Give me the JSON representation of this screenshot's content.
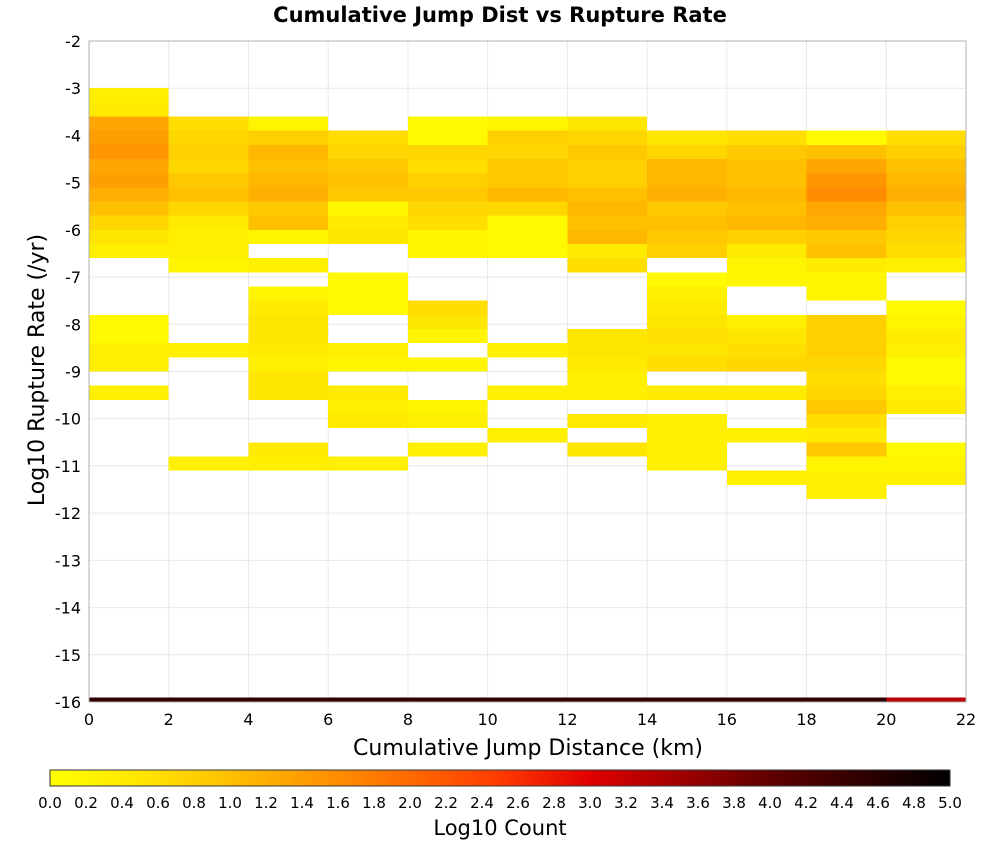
{
  "chart_data": {
    "type": "heatmap",
    "title": "Cumulative Jump Dist vs Rupture Rate",
    "xlabel": "Cumulative Jump Distance (km)",
    "ylabel": "Log10 Rupture Rate (/yr)",
    "xlim": [
      0,
      22
    ],
    "ylim": [
      -16,
      -2
    ],
    "x_ticks": [
      "0",
      "2",
      "4",
      "6",
      "8",
      "10",
      "12",
      "14",
      "16",
      "18",
      "20",
      "22"
    ],
    "y_ticks": [
      "-2",
      "-3",
      "-4",
      "-5",
      "-6",
      "-7",
      "-8",
      "-9",
      "-10",
      "-11",
      "-12",
      "-13",
      "-14",
      "-15",
      "-16"
    ],
    "x_bin_width": 2,
    "y_bin_height": 0.3,
    "grid": true,
    "colorbar": {
      "label": "Log10 Count",
      "min": 0.0,
      "max": 5.0,
      "ticks": [
        "0.0",
        "0.2",
        "0.4",
        "0.6",
        "0.8",
        "1.0",
        "1.2",
        "1.4",
        "1.6",
        "1.8",
        "2.0",
        "2.2",
        "2.4",
        "2.6",
        "2.8",
        "3.0",
        "3.2",
        "3.4",
        "3.6",
        "3.8",
        "4.0",
        "4.2",
        "4.4",
        "4.6",
        "4.8",
        "5.0"
      ],
      "colors": [
        "#ffff00",
        "#ffe600",
        "#ffc000",
        "#ff9500",
        "#ff6a00",
        "#ff3a00",
        "#e00000",
        "#a00000",
        "#600000",
        "#300000",
        "#000000"
      ]
    },
    "cells": [
      {
        "x": 0,
        "y": -3.3,
        "v": 0.3
      },
      {
        "x": 0,
        "y": -3.6,
        "v": 0.4
      },
      {
        "x": 0,
        "y": -3.9,
        "v": 1.3
      },
      {
        "x": 0,
        "y": -4.2,
        "v": 1.4
      },
      {
        "x": 0,
        "y": -4.5,
        "v": 1.5
      },
      {
        "x": 0,
        "y": -4.8,
        "v": 1.3
      },
      {
        "x": 0,
        "y": -5.1,
        "v": 1.4
      },
      {
        "x": 0,
        "y": -5.4,
        "v": 1.2
      },
      {
        "x": 0,
        "y": -5.7,
        "v": 1.0
      },
      {
        "x": 0,
        "y": -6.0,
        "v": 0.7
      },
      {
        "x": 0,
        "y": -6.3,
        "v": 0.5
      },
      {
        "x": 0,
        "y": -6.6,
        "v": 0.3
      },
      {
        "x": 0,
        "y": -8.1,
        "v": 0.1
      },
      {
        "x": 0,
        "y": -8.4,
        "v": 0.1
      },
      {
        "x": 0,
        "y": -8.7,
        "v": 0.3
      },
      {
        "x": 0,
        "y": -9.0,
        "v": 0.3
      },
      {
        "x": 0,
        "y": -9.6,
        "v": 0.3
      },
      {
        "x": 0,
        "y": -16.2,
        "v": 4.5
      },
      {
        "x": 2,
        "y": -3.9,
        "v": 0.6
      },
      {
        "x": 2,
        "y": -4.2,
        "v": 0.7
      },
      {
        "x": 2,
        "y": -4.5,
        "v": 0.8
      },
      {
        "x": 2,
        "y": -4.8,
        "v": 0.7
      },
      {
        "x": 2,
        "y": -5.1,
        "v": 0.9
      },
      {
        "x": 2,
        "y": -5.4,
        "v": 1.0
      },
      {
        "x": 2,
        "y": -5.7,
        "v": 0.7
      },
      {
        "x": 2,
        "y": -6.0,
        "v": 0.4
      },
      {
        "x": 2,
        "y": -6.3,
        "v": 0.3
      },
      {
        "x": 2,
        "y": -6.6,
        "v": 0.3
      },
      {
        "x": 2,
        "y": -6.9,
        "v": 0.2
      },
      {
        "x": 2,
        "y": -8.7,
        "v": 0.3
      },
      {
        "x": 2,
        "y": -11.1,
        "v": 0.3
      },
      {
        "x": 2,
        "y": -16.2,
        "v": 4.5
      },
      {
        "x": 4,
        "y": -3.9,
        "v": 0.2
      },
      {
        "x": 4,
        "y": -4.2,
        "v": 0.8
      },
      {
        "x": 4,
        "y": -4.5,
        "v": 1.1
      },
      {
        "x": 4,
        "y": -4.8,
        "v": 1.0
      },
      {
        "x": 4,
        "y": -5.1,
        "v": 1.1
      },
      {
        "x": 4,
        "y": -5.4,
        "v": 1.2
      },
      {
        "x": 4,
        "y": -5.7,
        "v": 0.9
      },
      {
        "x": 4,
        "y": -6.0,
        "v": 1.0
      },
      {
        "x": 4,
        "y": -6.3,
        "v": 0.2
      },
      {
        "x": 4,
        "y": -6.9,
        "v": 0.3
      },
      {
        "x": 4,
        "y": -7.5,
        "v": 0.2
      },
      {
        "x": 4,
        "y": -7.8,
        "v": 0.4
      },
      {
        "x": 4,
        "y": -8.1,
        "v": 0.5
      },
      {
        "x": 4,
        "y": -8.4,
        "v": 0.5
      },
      {
        "x": 4,
        "y": -8.7,
        "v": 0.4
      },
      {
        "x": 4,
        "y": -9.0,
        "v": 0.3
      },
      {
        "x": 4,
        "y": -9.3,
        "v": 0.5
      },
      {
        "x": 4,
        "y": -9.6,
        "v": 0.5
      },
      {
        "x": 4,
        "y": -10.8,
        "v": 0.4
      },
      {
        "x": 4,
        "y": -11.1,
        "v": 0.3
      },
      {
        "x": 4,
        "y": -16.2,
        "v": 4.5
      },
      {
        "x": 6,
        "y": -4.2,
        "v": 0.6
      },
      {
        "x": 6,
        "y": -4.5,
        "v": 0.7
      },
      {
        "x": 6,
        "y": -4.8,
        "v": 0.9
      },
      {
        "x": 6,
        "y": -5.1,
        "v": 1.0
      },
      {
        "x": 6,
        "y": -5.4,
        "v": 0.9
      },
      {
        "x": 6,
        "y": -5.7,
        "v": 0.2
      },
      {
        "x": 6,
        "y": -6.0,
        "v": 0.4
      },
      {
        "x": 6,
        "y": -6.3,
        "v": 0.5
      },
      {
        "x": 6,
        "y": -7.2,
        "v": 0.1
      },
      {
        "x": 6,
        "y": -7.5,
        "v": 0.1
      },
      {
        "x": 6,
        "y": -7.8,
        "v": 0.1
      },
      {
        "x": 6,
        "y": -8.7,
        "v": 0.3
      },
      {
        "x": 6,
        "y": -9.0,
        "v": 0.2
      },
      {
        "x": 6,
        "y": -9.6,
        "v": 0.4
      },
      {
        "x": 6,
        "y": -9.9,
        "v": 0.3
      },
      {
        "x": 6,
        "y": -10.2,
        "v": 0.4
      },
      {
        "x": 6,
        "y": -11.1,
        "v": 0.3
      },
      {
        "x": 6,
        "y": -16.2,
        "v": 4.5
      },
      {
        "x": 8,
        "y": -3.9,
        "v": 0.1
      },
      {
        "x": 8,
        "y": -4.2,
        "v": 0.1
      },
      {
        "x": 8,
        "y": -4.5,
        "v": 0.7
      },
      {
        "x": 8,
        "y": -4.8,
        "v": 0.6
      },
      {
        "x": 8,
        "y": -5.1,
        "v": 0.8
      },
      {
        "x": 8,
        "y": -5.4,
        "v": 0.9
      },
      {
        "x": 8,
        "y": -5.7,
        "v": 0.7
      },
      {
        "x": 8,
        "y": -6.0,
        "v": 0.6
      },
      {
        "x": 8,
        "y": -6.3,
        "v": 0.2
      },
      {
        "x": 8,
        "y": -6.6,
        "v": 0.2
      },
      {
        "x": 8,
        "y": -7.8,
        "v": 0.6
      },
      {
        "x": 8,
        "y": -8.1,
        "v": 0.5
      },
      {
        "x": 8,
        "y": -8.4,
        "v": 0.2
      },
      {
        "x": 8,
        "y": -9.0,
        "v": 0.2
      },
      {
        "x": 8,
        "y": -9.9,
        "v": 0.2
      },
      {
        "x": 8,
        "y": -10.2,
        "v": 0.3
      },
      {
        "x": 8,
        "y": -10.8,
        "v": 0.3
      },
      {
        "x": 8,
        "y": -16.2,
        "v": 4.5
      },
      {
        "x": 10,
        "y": -3.9,
        "v": 0.2
      },
      {
        "x": 10,
        "y": -4.2,
        "v": 0.8
      },
      {
        "x": 10,
        "y": -4.5,
        "v": 0.7
      },
      {
        "x": 10,
        "y": -4.8,
        "v": 0.9
      },
      {
        "x": 10,
        "y": -5.1,
        "v": 0.9
      },
      {
        "x": 10,
        "y": -5.4,
        "v": 1.1
      },
      {
        "x": 10,
        "y": -5.7,
        "v": 0.7
      },
      {
        "x": 10,
        "y": -6.0,
        "v": 0.1
      },
      {
        "x": 10,
        "y": -6.3,
        "v": 0.1
      },
      {
        "x": 10,
        "y": -6.6,
        "v": 0.1
      },
      {
        "x": 10,
        "y": -8.7,
        "v": 0.3
      },
      {
        "x": 10,
        "y": -9.6,
        "v": 0.3
      },
      {
        "x": 10,
        "y": -10.5,
        "v": 0.3
      },
      {
        "x": 10,
        "y": -16.2,
        "v": 4.5
      },
      {
        "x": 12,
        "y": -3.9,
        "v": 0.5
      },
      {
        "x": 12,
        "y": -4.2,
        "v": 0.7
      },
      {
        "x": 12,
        "y": -4.5,
        "v": 0.9
      },
      {
        "x": 12,
        "y": -4.8,
        "v": 0.8
      },
      {
        "x": 12,
        "y": -5.1,
        "v": 0.8
      },
      {
        "x": 12,
        "y": -5.4,
        "v": 1.0
      },
      {
        "x": 12,
        "y": -5.7,
        "v": 1.1
      },
      {
        "x": 12,
        "y": -6.0,
        "v": 1.0
      },
      {
        "x": 12,
        "y": -6.3,
        "v": 1.1
      },
      {
        "x": 12,
        "y": -6.6,
        "v": 0.4
      },
      {
        "x": 12,
        "y": -6.9,
        "v": 0.6
      },
      {
        "x": 12,
        "y": -8.4,
        "v": 0.5
      },
      {
        "x": 12,
        "y": -8.7,
        "v": 0.5
      },
      {
        "x": 12,
        "y": -9.0,
        "v": 0.4
      },
      {
        "x": 12,
        "y": -9.3,
        "v": 0.3
      },
      {
        "x": 12,
        "y": -9.6,
        "v": 0.3
      },
      {
        "x": 12,
        "y": -10.2,
        "v": 0.4
      },
      {
        "x": 12,
        "y": -10.8,
        "v": 0.5
      },
      {
        "x": 12,
        "y": -16.2,
        "v": 4.5
      },
      {
        "x": 14,
        "y": -4.2,
        "v": 0.5
      },
      {
        "x": 14,
        "y": -4.5,
        "v": 0.7
      },
      {
        "x": 14,
        "y": -4.8,
        "v": 1.1
      },
      {
        "x": 14,
        "y": -5.1,
        "v": 1.1
      },
      {
        "x": 14,
        "y": -5.4,
        "v": 1.2
      },
      {
        "x": 14,
        "y": -5.7,
        "v": 0.9
      },
      {
        "x": 14,
        "y": -6.0,
        "v": 1.0
      },
      {
        "x": 14,
        "y": -6.3,
        "v": 0.9
      },
      {
        "x": 14,
        "y": -6.6,
        "v": 0.8
      },
      {
        "x": 14,
        "y": -7.2,
        "v": 0.1
      },
      {
        "x": 14,
        "y": -7.5,
        "v": 0.3
      },
      {
        "x": 14,
        "y": -7.8,
        "v": 0.4
      },
      {
        "x": 14,
        "y": -8.1,
        "v": 0.5
      },
      {
        "x": 14,
        "y": -8.4,
        "v": 0.6
      },
      {
        "x": 14,
        "y": -8.7,
        "v": 0.5
      },
      {
        "x": 14,
        "y": -9.0,
        "v": 0.6
      },
      {
        "x": 14,
        "y": -9.6,
        "v": 0.4
      },
      {
        "x": 14,
        "y": -10.2,
        "v": 0.3
      },
      {
        "x": 14,
        "y": -10.5,
        "v": 0.3
      },
      {
        "x": 14,
        "y": -10.8,
        "v": 0.3
      },
      {
        "x": 14,
        "y": -11.1,
        "v": 0.3
      },
      {
        "x": 14,
        "y": -16.2,
        "v": 4.5
      },
      {
        "x": 16,
        "y": -4.2,
        "v": 0.6
      },
      {
        "x": 16,
        "y": -4.5,
        "v": 0.9
      },
      {
        "x": 16,
        "y": -4.8,
        "v": 1.0
      },
      {
        "x": 16,
        "y": -5.1,
        "v": 1.0
      },
      {
        "x": 16,
        "y": -5.4,
        "v": 1.1
      },
      {
        "x": 16,
        "y": -5.7,
        "v": 1.0
      },
      {
        "x": 16,
        "y": -6.0,
        "v": 1.1
      },
      {
        "x": 16,
        "y": -6.3,
        "v": 0.8
      },
      {
        "x": 16,
        "y": -6.6,
        "v": 0.4
      },
      {
        "x": 16,
        "y": -6.9,
        "v": 0.2
      },
      {
        "x": 16,
        "y": -7.2,
        "v": 0.2
      },
      {
        "x": 16,
        "y": -8.1,
        "v": 0.3
      },
      {
        "x": 16,
        "y": -8.4,
        "v": 0.5
      },
      {
        "x": 16,
        "y": -8.7,
        "v": 0.6
      },
      {
        "x": 16,
        "y": -9.0,
        "v": 0.7
      },
      {
        "x": 16,
        "y": -9.6,
        "v": 0.4
      },
      {
        "x": 16,
        "y": -10.5,
        "v": 0.3
      },
      {
        "x": 16,
        "y": -11.4,
        "v": 0.3
      },
      {
        "x": 16,
        "y": -16.2,
        "v": 4.5
      },
      {
        "x": 18,
        "y": -4.2,
        "v": 0.1
      },
      {
        "x": 18,
        "y": -4.5,
        "v": 1.0
      },
      {
        "x": 18,
        "y": -4.8,
        "v": 1.3
      },
      {
        "x": 18,
        "y": -5.1,
        "v": 1.5
      },
      {
        "x": 18,
        "y": -5.4,
        "v": 1.6
      },
      {
        "x": 18,
        "y": -5.7,
        "v": 1.3
      },
      {
        "x": 18,
        "y": -6.0,
        "v": 1.2
      },
      {
        "x": 18,
        "y": -6.3,
        "v": 0.9
      },
      {
        "x": 18,
        "y": -6.6,
        "v": 1.0
      },
      {
        "x": 18,
        "y": -6.9,
        "v": 0.4
      },
      {
        "x": 18,
        "y": -7.2,
        "v": 0.2
      },
      {
        "x": 18,
        "y": -7.5,
        "v": 0.2
      },
      {
        "x": 18,
        "y": -8.1,
        "v": 0.8
      },
      {
        "x": 18,
        "y": -8.4,
        "v": 0.8
      },
      {
        "x": 18,
        "y": -8.7,
        "v": 0.8
      },
      {
        "x": 18,
        "y": -9.0,
        "v": 0.7
      },
      {
        "x": 18,
        "y": -9.3,
        "v": 0.6
      },
      {
        "x": 18,
        "y": -9.6,
        "v": 0.7
      },
      {
        "x": 18,
        "y": -9.9,
        "v": 0.9
      },
      {
        "x": 18,
        "y": -10.2,
        "v": 0.6
      },
      {
        "x": 18,
        "y": -10.5,
        "v": 0.4
      },
      {
        "x": 18,
        "y": -10.8,
        "v": 0.9
      },
      {
        "x": 18,
        "y": -11.1,
        "v": 0.2
      },
      {
        "x": 18,
        "y": -11.4,
        "v": 0.3
      },
      {
        "x": 18,
        "y": -11.7,
        "v": 0.3
      },
      {
        "x": 18,
        "y": -16.2,
        "v": 4.5
      },
      {
        "x": 20,
        "y": -4.2,
        "v": 0.6
      },
      {
        "x": 20,
        "y": -4.5,
        "v": 0.8
      },
      {
        "x": 20,
        "y": -4.8,
        "v": 1.0
      },
      {
        "x": 20,
        "y": -5.1,
        "v": 1.1
      },
      {
        "x": 20,
        "y": -5.4,
        "v": 1.2
      },
      {
        "x": 20,
        "y": -5.7,
        "v": 1.0
      },
      {
        "x": 20,
        "y": -6.0,
        "v": 0.8
      },
      {
        "x": 20,
        "y": -6.3,
        "v": 0.7
      },
      {
        "x": 20,
        "y": -6.6,
        "v": 0.6
      },
      {
        "x": 20,
        "y": -6.9,
        "v": 0.3
      },
      {
        "x": 20,
        "y": -7.8,
        "v": 0.1
      },
      {
        "x": 20,
        "y": -8.1,
        "v": 0.2
      },
      {
        "x": 20,
        "y": -8.4,
        "v": 0.4
      },
      {
        "x": 20,
        "y": -8.7,
        "v": 0.3
      },
      {
        "x": 20,
        "y": -9.0,
        "v": 0.1
      },
      {
        "x": 20,
        "y": -9.3,
        "v": 0.1
      },
      {
        "x": 20,
        "y": -9.6,
        "v": 0.3
      },
      {
        "x": 20,
        "y": -9.9,
        "v": 0.4
      },
      {
        "x": 20,
        "y": -10.8,
        "v": 0.1
      },
      {
        "x": 20,
        "y": -11.1,
        "v": 0.2
      },
      {
        "x": 20,
        "y": -11.4,
        "v": 0.3
      },
      {
        "x": 20,
        "y": -16.2,
        "v": 3.3
      }
    ]
  }
}
